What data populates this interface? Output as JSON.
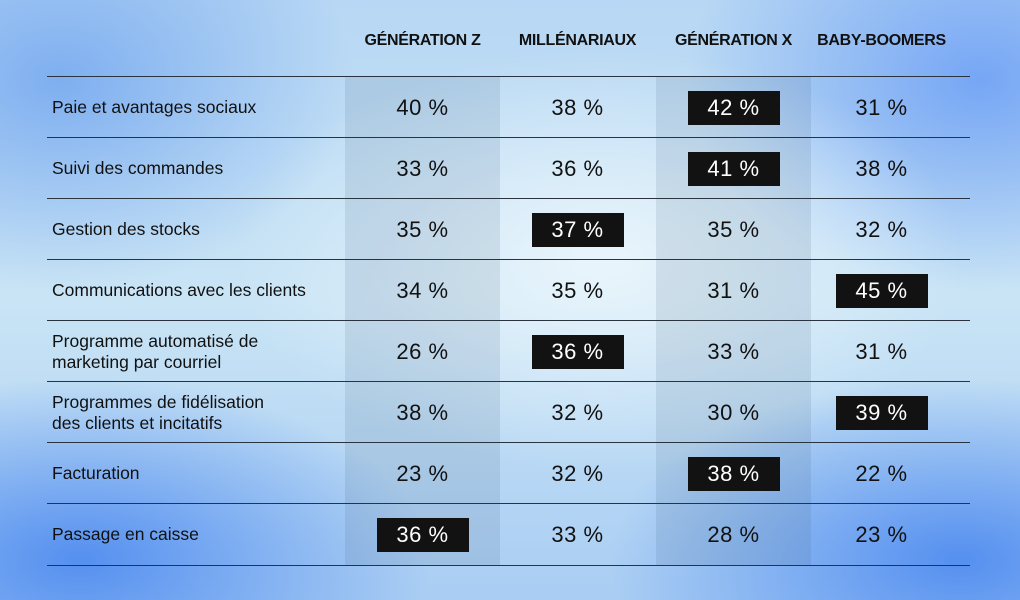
{
  "chart_data": {
    "type": "table",
    "columns": [
      "GÉNÉRATION Z",
      "MILLÉNARIAUX",
      "GÉNÉRATION X",
      "BABY-BOOMERS"
    ],
    "rows": [
      {
        "label": "Paie et avantages sociaux",
        "values": [
          "40 %",
          "38 %",
          "42 %",
          "31 %"
        ],
        "highlight": 2
      },
      {
        "label": "Suivi des commandes",
        "values": [
          "33 %",
          "36 %",
          "41 %",
          "38 %"
        ],
        "highlight": 2
      },
      {
        "label": "Gestion des stocks",
        "values": [
          "35 %",
          "37 %",
          "35 %",
          "32 %"
        ],
        "highlight": 1
      },
      {
        "label": "Communications avec les clients",
        "values": [
          "34 %",
          "35 %",
          "31 %",
          "45 %"
        ],
        "highlight": 3
      },
      {
        "label": "Programme automatisé de\nmarketing par courriel",
        "values": [
          "26 %",
          "36 %",
          "33 %",
          "31 %"
        ],
        "highlight": 1
      },
      {
        "label": "Programmes de fidélisation\ndes clients et incitatifs",
        "values": [
          "38 %",
          "32 %",
          "30 %",
          "39 %"
        ],
        "highlight": 3
      },
      {
        "label": "Facturation",
        "values": [
          "23 %",
          "32 %",
          "38 %",
          "22 %"
        ],
        "highlight": 2
      },
      {
        "label": "Passage en caisse",
        "values": [
          "36 %",
          "33 %",
          "28 %",
          "23 %"
        ],
        "highlight": 0
      }
    ],
    "shaded_columns": [
      0,
      2
    ],
    "highlight_color": "#121212"
  }
}
